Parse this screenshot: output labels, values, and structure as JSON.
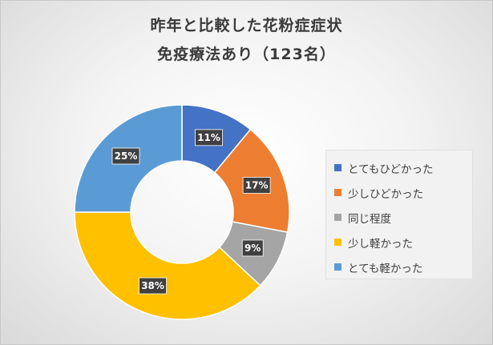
{
  "chart_data": {
    "type": "pie",
    "variant": "donut",
    "title": "昨年と比較した花粉症症状",
    "subtitle": "免疫療法あり（123名）",
    "categories": [
      "とてもひどかった",
      "少しひどかった",
      "同じ程度",
      "少し軽かった",
      "とても軽かった"
    ],
    "values": [
      11,
      17,
      9,
      38,
      25
    ],
    "labels": [
      "11%",
      "17%",
      "9%",
      "38%",
      "25%"
    ],
    "colors": [
      "#4472c4",
      "#ed7d31",
      "#a5a5a5",
      "#ffc000",
      "#5b9bd5"
    ],
    "legend_position": "right",
    "label_style": "dark-callout"
  }
}
